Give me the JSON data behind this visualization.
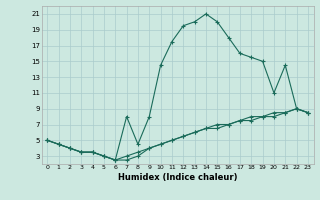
{
  "xlabel": "Humidex (Indice chaleur)",
  "xlim": [
    -0.5,
    23.5
  ],
  "ylim": [
    2,
    22
  ],
  "xticks": [
    0,
    1,
    2,
    3,
    4,
    5,
    6,
    7,
    8,
    9,
    10,
    11,
    12,
    13,
    14,
    15,
    16,
    17,
    18,
    19,
    20,
    21,
    22,
    23
  ],
  "yticks": [
    3,
    5,
    7,
    9,
    11,
    13,
    15,
    17,
    19,
    21
  ],
  "background_color": "#cce8e0",
  "grid_color": "#aacccc",
  "line_color": "#1a6b5a",
  "line1_x": [
    0,
    1,
    2,
    3,
    4,
    5,
    6,
    7,
    8,
    9,
    10,
    11,
    12,
    13,
    14,
    15,
    16,
    17,
    18,
    19,
    20,
    21,
    22,
    23
  ],
  "line1_y": [
    5,
    4.5,
    4,
    3.5,
    3.5,
    3,
    2.5,
    3,
    3.5,
    4,
    4.5,
    5,
    5.5,
    6,
    6.5,
    7,
    7,
    7.5,
    7.5,
    8,
    8,
    8.5,
    9,
    8.5
  ],
  "line2_x": [
    0,
    1,
    2,
    3,
    4,
    5,
    6,
    7,
    8,
    9,
    10,
    11,
    12,
    13,
    14,
    15,
    16,
    17,
    18,
    19,
    20,
    21,
    22,
    23
  ],
  "line2_y": [
    5,
    4.5,
    4,
    3.5,
    3.5,
    3,
    2.5,
    8,
    4.5,
    8,
    14.5,
    17.5,
    19.5,
    20,
    21,
    20,
    18,
    16,
    15.5,
    15,
    11,
    14.5,
    9,
    8.5
  ],
  "line3_x": [
    0,
    1,
    2,
    3,
    4,
    5,
    6,
    7,
    8,
    9,
    10,
    11,
    12,
    13,
    14,
    15,
    16,
    17,
    18,
    19,
    20,
    21,
    22,
    23
  ],
  "line3_y": [
    5,
    4.5,
    4,
    3.5,
    3.5,
    3,
    2.5,
    2.5,
    3,
    4,
    4.5,
    5,
    5.5,
    6,
    6.5,
    6.5,
    7,
    7.5,
    8,
    8,
    8.5,
    8.5,
    9,
    8.5
  ]
}
